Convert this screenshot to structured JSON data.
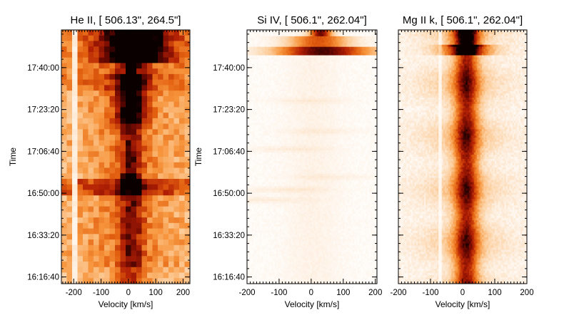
{
  "chart_data": [
    {
      "type": "heatmap",
      "title": "He II, [ 506.13\",  264.5\"]",
      "xlabel": "Velocity [km/s]",
      "ylabel": "Time",
      "xlim": [
        -245,
        225
      ],
      "x_ticks": [
        -200,
        -100,
        0,
        100,
        200
      ],
      "x_tick_labels": [
        "-200",
        "-100",
        "0",
        "100",
        "200"
      ],
      "time_range": [
        "16:14:00",
        "17:55:00"
      ],
      "y_ticks": [
        "16:16:40",
        "16:33:20",
        "16:50:00",
        "17:06:40",
        "17:23:20",
        "17:40:00"
      ],
      "colormap": "black-red-orange-white (inverted heat)",
      "grid": false
    },
    {
      "type": "heatmap",
      "title": "Si IV, [  506.1\",  262.04\"]",
      "xlabel": "Velocity [km/s]",
      "ylabel": "Time",
      "xlim": [
        -200,
        205
      ],
      "x_ticks": [
        -200,
        -100,
        0,
        100,
        200
      ],
      "x_tick_labels": [
        "-200",
        "-100",
        "0",
        "100",
        "200"
      ],
      "time_range": [
        "16:14:00",
        "17:55:00"
      ],
      "y_ticks": [
        "16:16:40",
        "16:33:20",
        "16:50:00",
        "17:06:40",
        "17:23:20",
        "17:40:00"
      ],
      "colormap": "black-red-orange-white (inverted heat)",
      "grid": false
    },
    {
      "type": "heatmap",
      "title": "Mg II k, [  506.1\",  262.04\"]",
      "xlabel": "Velocity [km/s]",
      "ylabel": "",
      "xlim": [
        -200,
        200
      ],
      "x_ticks": [
        -200,
        -100,
        0,
        100,
        200
      ],
      "x_tick_labels": [
        "-200",
        "-100",
        "0",
        "100",
        "200"
      ],
      "time_range": [
        "16:14:00",
        "17:55:00"
      ],
      "y_ticks": [],
      "colormap": "black-red-orange-white (inverted heat)",
      "grid": false
    }
  ]
}
